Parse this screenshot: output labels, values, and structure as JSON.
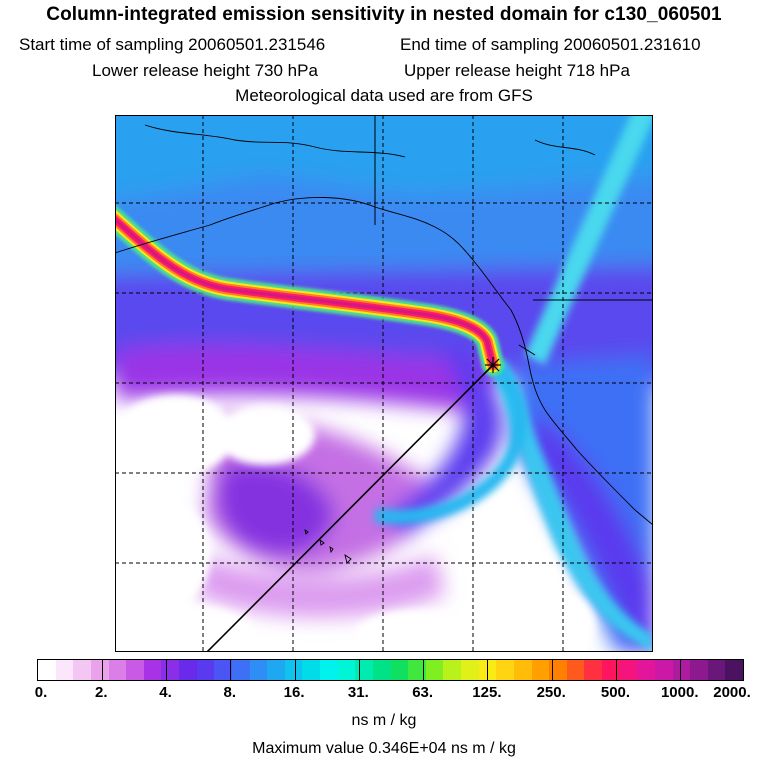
{
  "header": {
    "title": "Column-integrated emission sensitivity in nested domain for c130_060501",
    "start_label": "Start time of sampling",
    "start_value": "20060501.231546",
    "end_label": "End time of sampling",
    "end_value": "20060501.231610",
    "lower_label": "Lower release height",
    "lower_value": "730 hPa",
    "upper_label": "Upper release height",
    "upper_value": "718 hPa",
    "met_line": "Meteorological data used are from GFS"
  },
  "colorbar": {
    "tick_labels": [
      "0.",
      "2.",
      "4.",
      "8.",
      "16.",
      "31.",
      "63.",
      "125.",
      "250.",
      "500.",
      "1000.",
      "2000."
    ],
    "colors": [
      "#ffffff",
      "#fbe6fb",
      "#f4c6f4",
      "#eaa3ea",
      "#dc7ee8",
      "#c95ae6",
      "#a833e6",
      "#8a2ee8",
      "#6a2ae9",
      "#5a3aef",
      "#4a55f3",
      "#3d70f5",
      "#2f8ef5",
      "#1ea8f2",
      "#10c2ee",
      "#00dce8",
      "#00f2ee",
      "#00f5d6",
      "#00ebb0",
      "#00e288",
      "#10e060",
      "#40e83e",
      "#80ef22",
      "#b8f21a",
      "#e0f018",
      "#fbeb15",
      "#ffd410",
      "#ffbc08",
      "#ffa000",
      "#ff8000",
      "#ff5a1e",
      "#ff3040",
      "#ff1460",
      "#f5147e",
      "#e3159a",
      "#cc18a6",
      "#ae1aa0",
      "#8c1a8e",
      "#6a177a",
      "#4a1260"
    ],
    "units": "ns m / kg"
  },
  "footer": {
    "max_label": "Maximum value",
    "max_value": "0.346E+04",
    "max_units": "ns m / kg"
  },
  "map": {
    "grid": "dashed",
    "release_marker": "star"
  }
}
